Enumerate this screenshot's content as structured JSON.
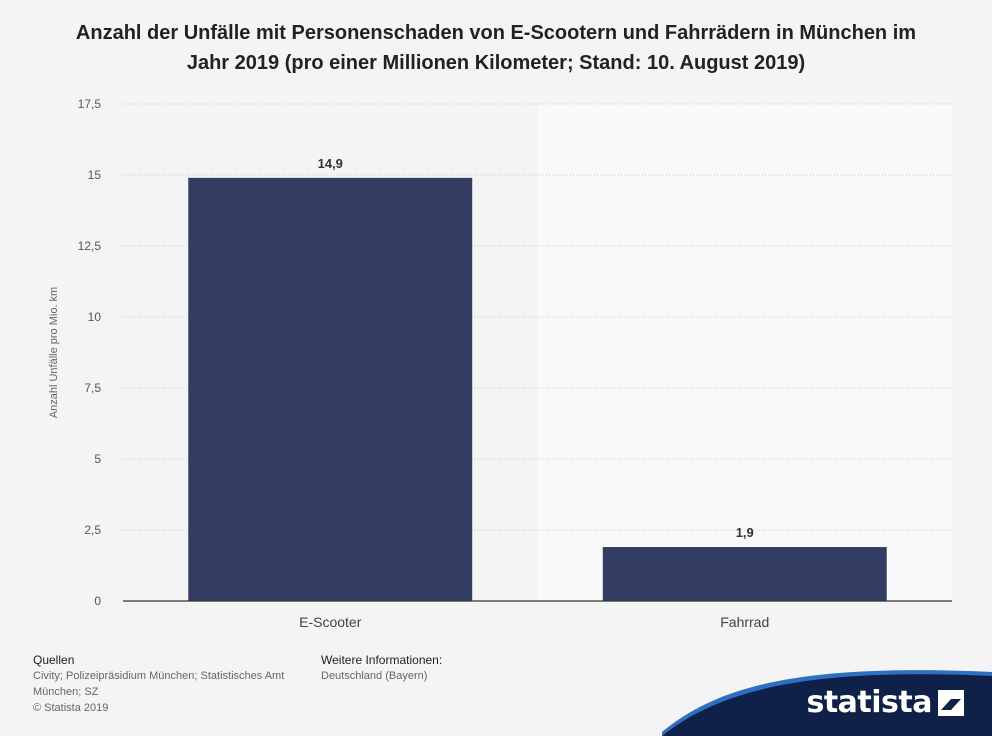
{
  "chart_data": {
    "type": "bar",
    "title": "Anzahl der Unfälle mit Personenschaden von E-Scootern und Fahrrädern in München im Jahr 2019 (pro einer Millionen Kilometer; Stand: 10. August 2019)",
    "categories": [
      "E-Scooter",
      "Fahrrad"
    ],
    "values": [
      14.9,
      1.9
    ],
    "value_labels": [
      "14,9",
      "1,9"
    ],
    "ylabel": "Anzahl Unfälle pro Mio. km",
    "ylim": [
      0,
      17.5
    ],
    "yticks": [
      0,
      2.5,
      5,
      7.5,
      10,
      12.5,
      15,
      17.5
    ],
    "ytick_labels": [
      "0",
      "2,5",
      "5",
      "7,5",
      "10",
      "12,5",
      "15",
      "17,5"
    ],
    "grid": true,
    "bar_color": "#333c62"
  },
  "footer": {
    "sources_heading": "Quellen",
    "sources_text": "Civity; Polizeipräsidium München; Statistisches Amt München; SZ",
    "copyright": "© Statista 2019",
    "more_heading": "Weitere Informationen:",
    "more_text": "Deutschland (Bayern)"
  },
  "brand": {
    "name": "statista",
    "color": "#0f2148",
    "accent": "#2d6fc0",
    "icon": "statista-logo-icon"
  }
}
